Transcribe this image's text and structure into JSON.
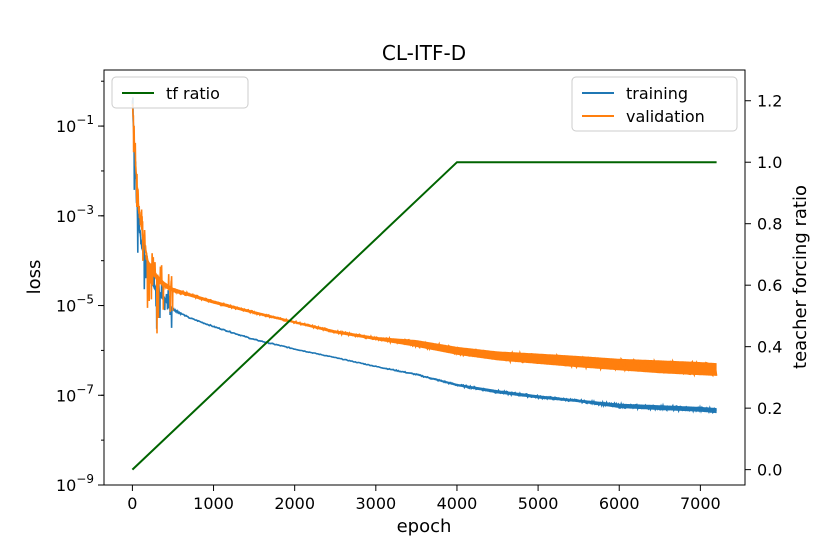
{
  "chart_data": {
    "type": "line",
    "title": "CL-ITF-D",
    "xlabel": "epoch",
    "ylabel_left": "loss",
    "ylabel_right": "teacher forcing ratio",
    "xlim": [
      -350,
      7550
    ],
    "x_ticks": [
      0,
      1000,
      2000,
      3000,
      4000,
      5000,
      6000,
      7000
    ],
    "x_tick_labels": [
      "0",
      "1000",
      "2000",
      "3000",
      "4000",
      "5000",
      "6000",
      "7000"
    ],
    "left_axis": {
      "scale": "log",
      "ylim_exp": [
        -9,
        0.25
      ],
      "tick_exponents": [
        -9,
        -7,
        -5,
        -3,
        -1
      ],
      "tick_base": "10"
    },
    "right_axis": {
      "scale": "linear",
      "ylim": [
        -0.05,
        1.3
      ],
      "ticks": [
        0.0,
        0.2,
        0.4,
        0.6,
        0.8,
        1.0,
        1.2
      ],
      "tick_labels": [
        "0.0",
        "0.2",
        "0.4",
        "0.6",
        "0.8",
        "1.0",
        "1.2"
      ]
    },
    "series": [
      {
        "name": "training",
        "axis": "left",
        "color": "#1f77b4",
        "x": [
          0,
          20,
          50,
          80,
          100,
          150,
          200,
          300,
          400,
          500,
          700,
          1000,
          1500,
          2000,
          2500,
          3000,
          3500,
          4000,
          4500,
          5000,
          5500,
          6000,
          6500,
          7000,
          7200
        ],
        "y": [
          0.4,
          0.05,
          0.003,
          0.0009,
          0.0004,
          0.00015,
          6e-05,
          2.5e-05,
          1.5e-05,
          8.5e-06,
          5.5e-06,
          3.5e-06,
          1.8e-06,
          1.1e-06,
          7e-07,
          4.5e-07,
          3e-07,
          1.8e-07,
          1.3e-07,
          1e-07,
          8e-08,
          6.5e-08,
          6e-08,
          5.5e-08,
          5.2e-08
        ],
        "band_low": [
          0.35,
          0.04,
          0.002,
          0.0006,
          0.00025,
          0.0001,
          4e-05,
          1.8e-05,
          1.2e-05,
          8e-06,
          5.2e-06,
          3.3e-06,
          1.7e-06,
          1.05e-06,
          6.8e-07,
          4.3e-07,
          2.8e-07,
          1.6e-07,
          1.1e-07,
          8.5e-08,
          7e-08,
          5.2e-08,
          4.7e-08,
          4.3e-08,
          4e-08
        ]
      },
      {
        "name": "validation",
        "axis": "left",
        "color": "#ff7f0e",
        "x": [
          0,
          20,
          50,
          80,
          100,
          150,
          200,
          300,
          400,
          500,
          700,
          1000,
          1500,
          2000,
          2500,
          3000,
          3500,
          4000,
          4500,
          5000,
          5500,
          6000,
          6500,
          7000,
          7200
        ],
        "y": [
          0.5,
          0.08,
          0.01,
          0.002,
          0.001,
          0.0003,
          0.0001,
          5e-05,
          3.3e-05,
          2.5e-05,
          1.9e-05,
          1.3e-05,
          7.5e-06,
          4.5e-06,
          2.8e-06,
          2e-06,
          1.7e-06,
          1.2e-06,
          9.5e-07,
          8.5e-07,
          7.5e-07,
          6.5e-07,
          6e-07,
          5.5e-07,
          5.2e-07
        ],
        "band_low": [
          0.4,
          0.05,
          0.005,
          0.001,
          0.0006,
          0.0002,
          7e-05,
          3.5e-05,
          2.5e-05,
          2e-05,
          1.6e-05,
          1.1e-05,
          6.5e-06,
          4e-06,
          2.4e-06,
          1.7e-06,
          1.2e-06,
          8e-07,
          6e-07,
          5e-07,
          4.2e-07,
          3.6e-07,
          3.1e-07,
          2.8e-07,
          2.7e-07
        ]
      },
      {
        "name": "tf ratio",
        "axis": "right",
        "color": "#006400",
        "x": [
          0,
          4000,
          7200
        ],
        "y": [
          0.0,
          1.0,
          1.0
        ]
      }
    ],
    "legend_left": {
      "placement": "top-left",
      "entries": [
        "tf ratio"
      ]
    },
    "legend_right": {
      "placement": "top-right",
      "entries": [
        "training",
        "validation"
      ]
    },
    "grid": false
  }
}
